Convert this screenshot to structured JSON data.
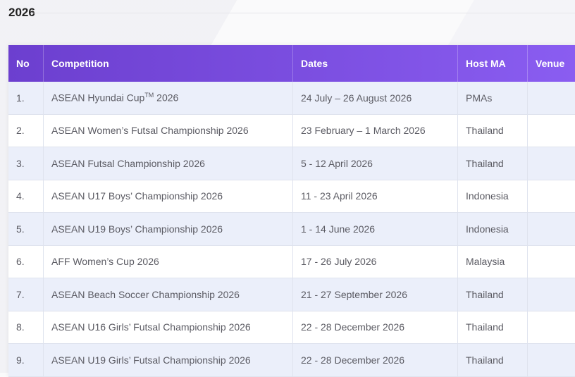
{
  "section_title": "2026",
  "table": {
    "headers": [
      "No",
      "Competition",
      "Dates",
      "Host MA",
      "Venue"
    ],
    "rows": [
      {
        "no": "1.",
        "competition": "ASEAN Hyundai Cup",
        "competition_sup": "TM",
        "competition_suffix": " 2026",
        "dates": "24 July – 26 August 2026",
        "host": "PMAs",
        "venue": ""
      },
      {
        "no": "2.",
        "competition": "ASEAN Women’s Futsal Championship 2026",
        "dates": "23 February – 1 March 2026",
        "host": "Thailand",
        "venue": ""
      },
      {
        "no": "3.",
        "competition": "ASEAN Futsal Championship 2026",
        "dates": "5 - 12 April 2026",
        "host": "Thailand",
        "venue": ""
      },
      {
        "no": "4.",
        "competition": "ASEAN U17 Boys’ Championship 2026",
        "dates": "11 - 23 April 2026",
        "host": "Indonesia",
        "venue": ""
      },
      {
        "no": "5.",
        "competition": "ASEAN U19 Boys’ Championship 2026",
        "dates": "1 - 14 June 2026",
        "host": "Indonesia",
        "venue": ""
      },
      {
        "no": "6.",
        "competition": "AFF Women’s Cup 2026",
        "dates": "17 - 26 July 2026",
        "host": "Malaysia",
        "venue": ""
      },
      {
        "no": "7.",
        "competition": "ASEAN Beach Soccer Championship 2026",
        "dates": "21 - 27 September 2026",
        "host": "Thailand",
        "venue": ""
      },
      {
        "no": "8.",
        "competition": "ASEAN U16 Girls’ Futsal Championship 2026",
        "dates": "22 - 28 December 2026",
        "host": "Thailand",
        "venue": ""
      },
      {
        "no": "9.",
        "competition": "ASEAN U19 Girls’ Futsal Championship 2026",
        "dates": "22 - 28 December 2026",
        "host": "Thailand",
        "venue": ""
      }
    ]
  },
  "colors": {
    "header_start": "#6c3fcf",
    "header_end": "#8b5ef2",
    "row_alt": "#ebeffa"
  }
}
